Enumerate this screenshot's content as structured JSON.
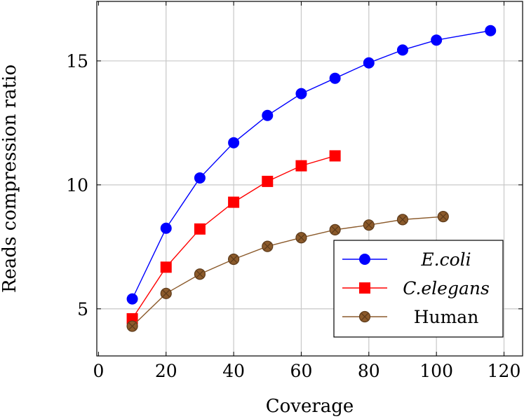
{
  "chart_data": {
    "type": "line",
    "title": "",
    "xlabel": "Coverage",
    "ylabel": "Reads compression ratio",
    "xlim": [
      -0.5,
      125.5
    ],
    "ylim": [
      3.1,
      17.4
    ],
    "xticks": [
      0,
      20,
      40,
      60,
      80,
      100,
      120
    ],
    "yticks": [
      5,
      10,
      15
    ],
    "xtick_labels": [
      "0",
      "20",
      "40",
      "60",
      "80",
      "100",
      "120"
    ],
    "ytick_labels": [
      "5",
      "10",
      "15"
    ],
    "grid": true,
    "legend_position": "bottom-right",
    "series": [
      {
        "name": "E.coli",
        "color": "#0000ff",
        "marker": "circle",
        "italic": true,
        "x": [
          10,
          20,
          30,
          40,
          50,
          60,
          70,
          80,
          90,
          100,
          116
        ],
        "y": [
          5.4,
          8.25,
          10.28,
          11.7,
          12.8,
          13.68,
          14.3,
          14.92,
          15.44,
          15.84,
          16.22
        ]
      },
      {
        "name": "C.elegans",
        "color": "#ff0000",
        "marker": "square",
        "italic": true,
        "x": [
          10,
          20,
          30,
          40,
          50,
          60,
          70
        ],
        "y": [
          4.6,
          6.68,
          8.22,
          9.3,
          10.14,
          10.77,
          11.17
        ]
      },
      {
        "name": "Human",
        "color": "#8b5a2b",
        "marker": "circle-x",
        "italic": false,
        "x": [
          10,
          20,
          30,
          40,
          50,
          60,
          70,
          80,
          90,
          102
        ],
        "y": [
          4.3,
          5.62,
          6.4,
          7.0,
          7.52,
          7.87,
          8.19,
          8.38,
          8.6,
          8.72
        ]
      }
    ]
  }
}
